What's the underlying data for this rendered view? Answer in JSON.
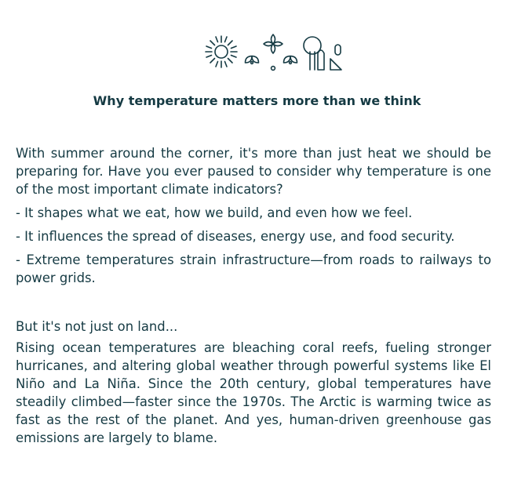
{
  "title": "Why temperature matters more than we think",
  "logo": {
    "icons": [
      "sun-icon",
      "flower-icon",
      "tree-icon",
      "triangle-icon"
    ]
  },
  "paragraphs": [
    "With summer around the corner, it's more than just heat we should be preparing for. Have you ever paused to consider why temperature is one of the most important climate indicators?",
    "- It shapes what we eat, how we build, and even how we feel.",
    "- It influences the spread of diseases, energy use, and food security.",
    "- Extreme temperatures strain infrastructure—from roads to railways to power grids.",
    "But it's not just on land...",
    "Rising ocean temperatures are bleaching coral reefs, fueling stronger hurricanes, and altering global weather through powerful systems like El Niño and La Niña. Since the 20th century, global temperatures have steadily climbed—faster since the 1970s. The Arctic is warming twice as fast as the rest of the planet. And yes, human-driven greenhouse gas emissions are largely to blame."
  ],
  "colors": {
    "text": "#153a43",
    "background": "#ffffff"
  }
}
